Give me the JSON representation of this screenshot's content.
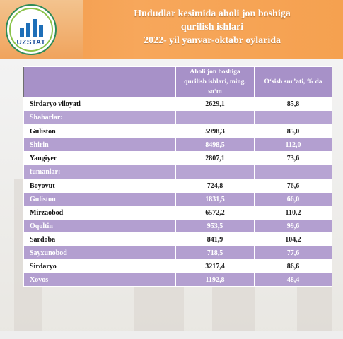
{
  "header": {
    "logo_text": "UZSTAT",
    "title_line1": "Hududlar kesimida aholi jon boshiga",
    "title_line2": "qurilish ishlari",
    "title_line3": "2022- yil yanvar-oktabr oylarida"
  },
  "table": {
    "col_headers": [
      "",
      "Aholi jon boshiga qurilish ishlari, ming. so‘m",
      "O‘sish sur’ati, % da"
    ],
    "rows": [
      {
        "label": "Sirdaryo viloyati",
        "value": "2629,1",
        "growth": "85,8",
        "style": "white"
      },
      {
        "label": "Shaharlar:",
        "value": "",
        "growth": "",
        "style": "section"
      },
      {
        "label": "Guliston",
        "value": "5998,3",
        "growth": "85,0",
        "style": "white"
      },
      {
        "label": "Shirin",
        "value": "8498,5",
        "growth": "112,0",
        "style": "purple"
      },
      {
        "label": "Yangiyer",
        "value": "2807,1",
        "growth": "73,6",
        "style": "white"
      },
      {
        "label": "tumanlar:",
        "value": "",
        "growth": "",
        "style": "section"
      },
      {
        "label": "Boyovut",
        "value": "724,8",
        "growth": "76,6",
        "style": "white"
      },
      {
        "label": "Guliston",
        "value": "1831,5",
        "growth": "66,0",
        "style": "purple"
      },
      {
        "label": "Mirzaobod",
        "value": "6572,2",
        "growth": "110,2",
        "style": "white"
      },
      {
        "label": "Oqoltin",
        "value": "953,5",
        "growth": "99,6",
        "style": "purple"
      },
      {
        "label": "Sardoba",
        "value": "841,9",
        "growth": "104,2",
        "style": "white"
      },
      {
        "label": "Sayxunobod",
        "value": "718,5",
        "growth": "77,6",
        "style": "purple"
      },
      {
        "label": "Sirdaryo",
        "value": "3217,4",
        "growth": "86,6",
        "style": "white"
      },
      {
        "label": "Xovos",
        "value": "1192,8",
        "growth": "48,4",
        "style": "purple"
      }
    ]
  },
  "colors": {
    "header_orange": "#f5a150",
    "table_purple": "#b39fd0",
    "header_purple": "#a791c8"
  }
}
